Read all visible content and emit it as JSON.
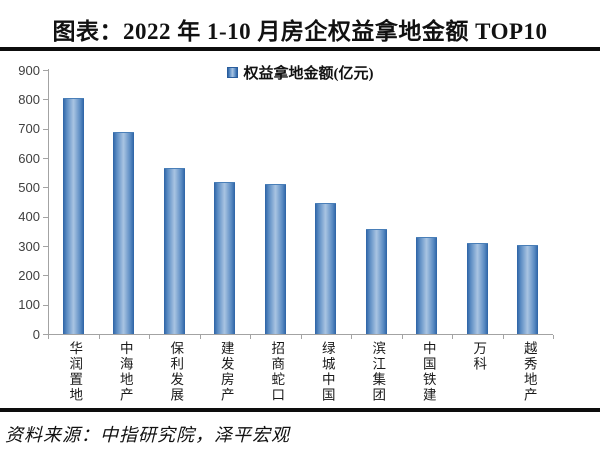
{
  "title": "图表：2022 年 1-10 月房企权益拿地金额 TOP10",
  "legend": {
    "label": "权益拿地金额(亿元)"
  },
  "source": "资料来源：中指研究院，泽平宏观",
  "colors": {
    "bar_edge": "#2c63a5",
    "bar_mid": "#a9c4e2",
    "axis": "#a3a3a3",
    "y_tick_label": "#404040",
    "rule": "#0d0d0d"
  },
  "chart_data": {
    "type": "bar",
    "title": "图表：2022 年 1-10 月房企权益拿地金额 TOP10",
    "legend_entries": [
      "权益拿地金额(亿元)"
    ],
    "legend_position": "top-center",
    "categories": [
      "华润置地",
      "中海地产",
      "保利发展",
      "建发房产",
      "招商蛇口",
      "绿城中国",
      "滨江集团",
      "中国铁建",
      "万科",
      "越秀地产"
    ],
    "values": [
      805,
      690,
      565,
      518,
      511,
      448,
      357,
      330,
      310,
      303
    ],
    "xlabel": "",
    "ylabel": "",
    "ylim": [
      0,
      900
    ],
    "yticks": [
      0,
      100,
      200,
      300,
      400,
      500,
      600,
      700,
      800,
      900
    ],
    "grid": false,
    "unit": "亿元"
  }
}
